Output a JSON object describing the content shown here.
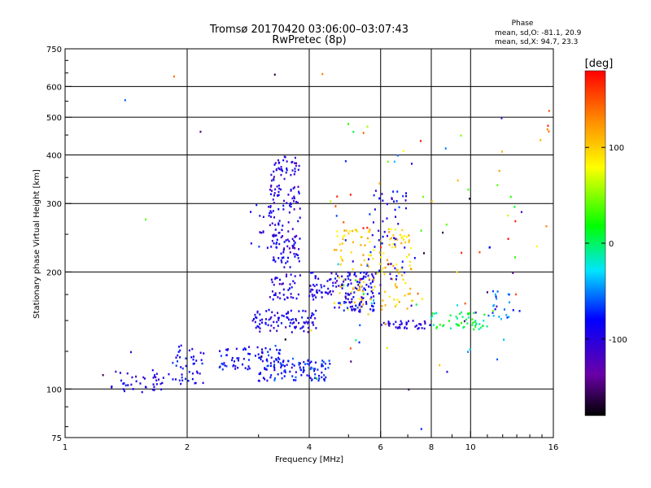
{
  "chart_data": {
    "type": "scatter",
    "title": "Tromsø 20170420 03:06:00–03:07:43",
    "subtitle": "RwPretec (8p)",
    "xlabel": "Frequency [MHz]",
    "ylabel": "Stationary phase Virtual Height [km]",
    "x_scale": "log",
    "y_scale": "log",
    "xlim": [
      1,
      16
    ],
    "ylim": [
      75,
      750
    ],
    "x_ticks": [
      1,
      2,
      4,
      6,
      8,
      10,
      16
    ],
    "x_tick_labels": [
      "1",
      "2",
      "4",
      "6",
      "8",
      "10",
      "16"
    ],
    "x_grid": [
      2,
      4,
      6,
      8,
      10
    ],
    "y_ticks": [
      75,
      100,
      200,
      300,
      400,
      500,
      600,
      750
    ],
    "y_tick_labels": [
      "75",
      "100",
      "200",
      "300",
      "400",
      "500",
      "600",
      "750"
    ],
    "y_grid": [
      100,
      200,
      300,
      400,
      500,
      600
    ],
    "stats": {
      "title": "Phase",
      "line_o": "mean, sd,O: -81.1, 20.9",
      "line_x": "mean, sd,X:  94.7, 23.3"
    },
    "colorbar": {
      "label": "[deg]",
      "range": [
        -180,
        180
      ],
      "ticks": [
        100,
        0,
        -100
      ],
      "tick_labels": [
        "100",
        "0",
        "-100"
      ],
      "colormap": "rainbow"
    },
    "clusters": [
      {
        "x": [
          1.3,
          1.75
        ],
        "y": [
          97,
          112
        ],
        "phase": -95,
        "n": 40
      },
      {
        "x": [
          1.8,
          2.2
        ],
        "y": [
          103,
          130
        ],
        "phase": -90,
        "n": 45
      },
      {
        "x": [
          2.4,
          3.4
        ],
        "y": [
          112,
          130
        ],
        "phase": -85,
        "n": 70
      },
      {
        "x": [
          3.0,
          4.5
        ],
        "y": [
          105,
          120
        ],
        "phase": -80,
        "n": 110
      },
      {
        "x": [
          2.9,
          4.2
        ],
        "y": [
          140,
          160
        ],
        "phase": -95,
        "n": 90
      },
      {
        "x": [
          3.2,
          3.8
        ],
        "y": [
          170,
          400
        ],
        "phase": -100,
        "n": 200
      },
      {
        "x": [
          2.8,
          3.4
        ],
        "y": [
          230,
          300
        ],
        "phase": -90,
        "n": 25
      },
      {
        "x": [
          4.0,
          6.0
        ],
        "y": [
          170,
          200
        ],
        "phase": -95,
        "n": 130
      },
      {
        "x": [
          4.6,
          7.2
        ],
        "y": [
          160,
          260
        ],
        "phase": 100,
        "n": 150
      },
      {
        "x": [
          5.6,
          7.0
        ],
        "y": [
          190,
          330
        ],
        "phase": -90,
        "n": 50
      },
      {
        "x": [
          4.6,
          5.8
        ],
        "y": [
          158,
          168
        ],
        "phase": -85,
        "n": 40
      },
      {
        "x": [
          6.0,
          8.0
        ],
        "y": [
          143,
          150
        ],
        "phase": -100,
        "n": 40
      },
      {
        "x": [
          8.0,
          11.0
        ],
        "y": [
          142,
          158
        ],
        "phase": 5,
        "n": 50
      },
      {
        "x": [
          11.0,
          13.5
        ],
        "y": [
          150,
          180
        ],
        "phase": -60,
        "n": 22
      },
      {
        "x": [
          4.5,
          13.5
        ],
        "y": [
          110,
          500
        ],
        "phase": 0,
        "n": 80,
        "wide_phase": true
      },
      {
        "x": [
          15.3,
          15.7
        ],
        "y": [
          460,
          520
        ],
        "phase": 150,
        "n": 4
      },
      {
        "x": [
          1.0,
          16.0
        ],
        "y": [
          75,
          650
        ],
        "phase": 0,
        "n": 30,
        "wide_phase": true
      }
    ]
  }
}
